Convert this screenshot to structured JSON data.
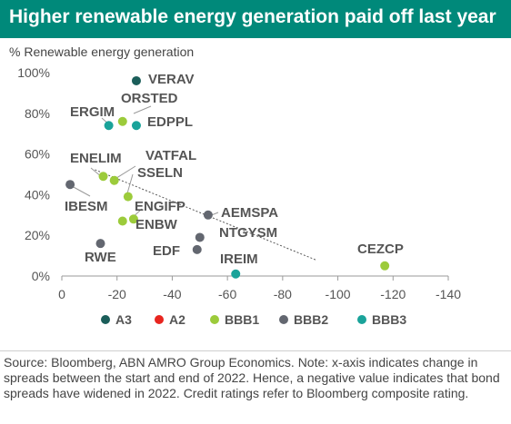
{
  "chart_data": {
    "type": "scatter",
    "title": "Higher renewable energy generation paid off last year",
    "ylabel": "% Renewable energy generation",
    "xlabel": "",
    "xlim": [
      0,
      -140
    ],
    "ylim": [
      0,
      100
    ],
    "x_ticks": [
      0,
      -20,
      -40,
      -60,
      -80,
      -100,
      -120,
      -140
    ],
    "x_tick_labels": [
      "0",
      "-20",
      "-40",
      "-60",
      "-80",
      "-100",
      "-120",
      "-140"
    ],
    "y_ticks": [
      0,
      20,
      40,
      60,
      80,
      100
    ],
    "y_tick_labels": [
      "0%",
      "20%",
      "40%",
      "60%",
      "80%",
      "100%"
    ],
    "grid": false,
    "trendline": true,
    "legend_position": "bottom",
    "legend": [
      {
        "name": "A3",
        "color": "#1b5e5a"
      },
      {
        "name": "A2",
        "color": "#e8251f"
      },
      {
        "name": "BBB1",
        "color": "#9ccb3b"
      },
      {
        "name": "BBB2",
        "color": "#636770"
      },
      {
        "name": "BBB3",
        "color": "#1aa39a"
      }
    ],
    "points": [
      {
        "label": "VERAV",
        "rating": "A3",
        "x": -27,
        "y": 96
      },
      {
        "label": "ORSTED",
        "rating": "BBB1",
        "x": -22,
        "y": 76
      },
      {
        "label": "ERGIM",
        "rating": "BBB3",
        "x": -17,
        "y": 74
      },
      {
        "label": "EDPPL",
        "rating": "BBB3",
        "x": -27,
        "y": 74
      },
      {
        "label": "ENELIM",
        "rating": "BBB1",
        "x": -15,
        "y": 49
      },
      {
        "label": "VATFAL",
        "rating": "BBB1",
        "x": -19,
        "y": 47
      },
      {
        "label": "SSELN",
        "rating": "BBB1",
        "x": -24,
        "y": 39
      },
      {
        "label": "IBESM",
        "rating": "BBB2",
        "x": -3,
        "y": 45
      },
      {
        "label": "ENGIFP",
        "rating": "BBB1",
        "x": -26,
        "y": 28
      },
      {
        "label": "ENBW",
        "rating": "BBB1",
        "x": -22,
        "y": 27
      },
      {
        "label": "AEMSPA",
        "rating": "BBB2",
        "x": -53,
        "y": 30
      },
      {
        "label": "NTGYSM",
        "rating": "BBB2",
        "x": -50,
        "y": 19
      },
      {
        "label": "EDF",
        "rating": "BBB2",
        "x": -49,
        "y": 13
      },
      {
        "label": "RWE",
        "rating": "BBB2",
        "x": -14,
        "y": 16
      },
      {
        "label": "IREIM",
        "rating": "BBB3",
        "x": -63,
        "y": 1
      },
      {
        "label": "CEZCP",
        "rating": "BBB1",
        "x": -117,
        "y": 5
      }
    ],
    "source": "Source: Bloomberg, ABN AMRO Group Economics. Note: x-axis indicates change in spreads between the start and end of 2022. Hence, a negative value indicates that bond spreads have widened in 2022. Credit ratings refer to Bloomberg composite rating."
  }
}
